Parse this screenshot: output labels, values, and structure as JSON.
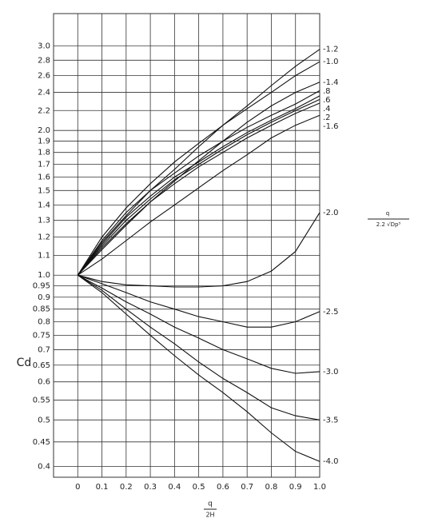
{
  "chart_data": {
    "type": "line",
    "log_y": true,
    "grid": true,
    "color": "#111111",
    "ylabel": "Cd",
    "xlabel": {
      "numerator": "q",
      "denominator": "2H"
    },
    "side_label": {
      "numerator": "q",
      "denominator": "2.2 √Dp³"
    },
    "x": [
      0,
      0.1,
      0.2,
      0.3,
      0.4,
      0.5,
      0.6,
      0.7,
      0.8,
      0.9,
      1.0
    ],
    "xlim": [
      -0.1,
      1.0
    ],
    "xticks": [
      0,
      0.1,
      0.2,
      0.3,
      0.4,
      0.5,
      0.6,
      0.7,
      0.8,
      0.9,
      {
        "value": 1,
        "label": "1.0"
      }
    ],
    "ylim": [
      0.38,
      3.5
    ],
    "yticks": [
      {
        "value": 3,
        "label": "3.0"
      },
      2.8,
      2.6,
      2.4,
      2.2,
      {
        "value": 2,
        "label": "2.0"
      },
      1.9,
      1.8,
      1.7,
      1.6,
      1.5,
      1.4,
      1.3,
      1.2,
      1.1,
      {
        "value": 1,
        "label": "1.0"
      },
      0.95,
      0.9,
      0.85,
      0.8,
      0.75,
      0.7,
      0.65,
      0.6,
      0.55,
      0.5,
      0.45,
      0.4
    ],
    "series": [
      {
        "name": "-1.2",
        "values": [
          1,
          1.17,
          1.33,
          1.5,
          1.66,
          1.85,
          2.05,
          2.25,
          2.48,
          2.72,
          2.95
        ]
      },
      {
        "name": "-1.0",
        "values": [
          1,
          1.2,
          1.38,
          1.55,
          1.72,
          1.88,
          2.05,
          2.22,
          2.4,
          2.6,
          2.78
        ]
      },
      {
        "name": "-1.4",
        "values": [
          1,
          1.13,
          1.27,
          1.42,
          1.57,
          1.73,
          1.9,
          2.08,
          2.25,
          2.4,
          2.52
        ]
      },
      {
        "name": ".8",
        "values": [
          1,
          1.18,
          1.35,
          1.5,
          1.63,
          1.77,
          1.9,
          2.03,
          2.15,
          2.27,
          2.42
        ]
      },
      {
        "name": ".6",
        "values": [
          1,
          1.16,
          1.32,
          1.46,
          1.6,
          1.72,
          1.85,
          1.98,
          2.1,
          2.22,
          2.36
        ]
      },
      {
        "name": ".4",
        "values": [
          1,
          1.15,
          1.3,
          1.44,
          1.58,
          1.7,
          1.83,
          1.96,
          2.08,
          2.2,
          2.32
        ]
      },
      {
        "name": ".2",
        "values": [
          1,
          1.14,
          1.28,
          1.42,
          1.55,
          1.68,
          1.8,
          1.93,
          2.05,
          2.17,
          2.28
        ]
      },
      {
        "name": "-1.6",
        "values": [
          1,
          1.08,
          1.18,
          1.29,
          1.4,
          1.52,
          1.65,
          1.78,
          1.93,
          2.05,
          2.15
        ]
      },
      {
        "name": "-2.0",
        "values": [
          1,
          0.97,
          0.955,
          0.95,
          0.945,
          0.945,
          0.95,
          0.97,
          1.02,
          1.12,
          1.35
        ]
      },
      {
        "name": "-2.5",
        "values": [
          1,
          0.96,
          0.92,
          0.88,
          0.85,
          0.82,
          0.8,
          0.78,
          0.78,
          0.8,
          0.84
        ]
      },
      {
        "name": "-3.0",
        "values": [
          1,
          0.94,
          0.88,
          0.83,
          0.78,
          0.74,
          0.7,
          0.67,
          0.64,
          0.625,
          0.63
        ]
      },
      {
        "name": "-3.5",
        "values": [
          1,
          0.93,
          0.85,
          0.78,
          0.72,
          0.66,
          0.61,
          0.57,
          0.53,
          0.51,
          0.5
        ]
      },
      {
        "name": "-4.0",
        "values": [
          1,
          0.92,
          0.83,
          0.75,
          0.68,
          0.62,
          0.57,
          0.52,
          0.47,
          0.43,
          0.41
        ]
      }
    ]
  }
}
